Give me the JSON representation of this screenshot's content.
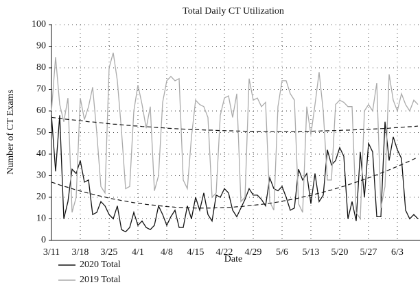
{
  "chart_data": {
    "type": "line",
    "title": "Total Daily CT Utilization",
    "x_label": "Date",
    "y_label": "Number of CT Exams",
    "categories": [
      "3/11",
      null,
      null,
      null,
      null,
      null,
      null,
      "3/18",
      null,
      null,
      null,
      null,
      null,
      null,
      "3/25",
      null,
      null,
      null,
      null,
      null,
      null,
      "4/1",
      null,
      null,
      null,
      null,
      null,
      null,
      "4/8",
      null,
      null,
      null,
      null,
      null,
      null,
      "4/15",
      null,
      null,
      null,
      null,
      null,
      null,
      "4/22",
      null,
      null,
      null,
      null,
      null,
      null,
      "4/29",
      null,
      null,
      null,
      null,
      null,
      null,
      "5/6",
      null,
      null,
      null,
      null,
      null,
      null,
      "5/13",
      null,
      null,
      null,
      null,
      null,
      null,
      "5/20",
      null,
      null,
      null,
      null,
      null,
      null,
      "5/27",
      null,
      null,
      null,
      null,
      null,
      null,
      "6/3",
      null,
      null,
      null,
      null,
      null
    ],
    "series": [
      {
        "name": "2020 Total",
        "color": "#111111",
        "values": [
          58,
          32,
          58,
          10,
          18,
          33,
          31,
          37,
          27,
          28,
          12,
          13,
          18,
          16,
          12,
          10,
          16,
          5,
          4,
          6,
          13,
          7,
          9,
          6,
          5,
          7,
          16,
          12,
          7,
          11,
          14,
          6,
          6,
          16,
          10,
          20,
          14,
          22,
          12,
          9,
          21,
          20,
          24,
          22,
          14,
          11,
          15,
          19,
          24,
          21,
          21,
          19,
          16,
          29,
          24,
          23,
          25,
          20,
          14,
          15,
          33,
          28,
          31,
          17,
          31,
          18,
          21,
          42,
          35,
          37,
          43,
          39,
          10,
          18,
          9,
          41,
          20,
          45,
          41,
          11,
          11,
          55,
          37,
          48,
          42,
          38,
          14,
          10,
          12,
          10
        ]
      },
      {
        "name": "2019 Total",
        "color": "#aaaaaa",
        "values": [
          60,
          85,
          63,
          55,
          66,
          13,
          20,
          66,
          56,
          62,
          71,
          50,
          25,
          22,
          80,
          87,
          74,
          51,
          24,
          25,
          60,
          72,
          63,
          52,
          62,
          23,
          30,
          64,
          74,
          76,
          74,
          75,
          28,
          24,
          48,
          65,
          63,
          62,
          57,
          20,
          22,
          58,
          66,
          67,
          57,
          68,
          18,
          20,
          75,
          65,
          66,
          62,
          64,
          18,
          14,
          62,
          74,
          74,
          68,
          65,
          17,
          13,
          62,
          49,
          63,
          78,
          60,
          28,
          28,
          63,
          65,
          64,
          62,
          62,
          13,
          10,
          60,
          63,
          60,
          73,
          15,
          25,
          77,
          65,
          60,
          68,
          63,
          60,
          65,
          63
        ]
      }
    ],
    "trend_lines": [
      {
        "color": "#111111",
        "values": [
          57.0,
          56.8,
          56.5,
          56.3,
          56.1,
          55.9,
          55.7,
          55.5,
          55.3,
          55.0,
          54.9,
          54.7,
          54.5,
          54.3,
          54.1,
          53.9,
          53.8,
          53.6,
          53.4,
          53.3,
          53.1,
          53.0,
          52.8,
          52.7,
          52.6,
          52.4,
          52.3,
          52.2,
          52.0,
          51.9,
          51.8,
          51.7,
          51.6,
          51.5,
          51.4,
          51.4,
          51.3,
          51.2,
          51.1,
          51.1,
          51.0,
          50.9,
          50.9,
          50.8,
          50.8,
          50.7,
          50.7,
          50.6,
          50.6,
          50.6,
          50.6,
          50.5,
          50.5,
          50.5,
          50.5,
          50.5,
          50.5,
          50.5,
          50.5,
          50.5,
          50.6,
          50.6,
          50.6,
          50.6,
          50.7,
          50.7,
          50.8,
          50.8,
          50.9,
          50.9,
          51.0,
          51.1,
          51.1,
          51.2,
          51.3,
          51.4,
          51.4,
          51.5,
          51.6,
          51.7,
          51.8,
          51.9,
          52.0,
          52.2,
          52.3,
          52.4,
          52.6,
          52.7,
          52.8,
          53.0
        ]
      },
      {
        "color": "#111111",
        "values": [
          27.0,
          26.4,
          25.7,
          25.1,
          24.6,
          24.0,
          23.4,
          22.9,
          22.4,
          21.9,
          21.4,
          20.9,
          20.5,
          20.1,
          19.6,
          19.2,
          18.9,
          18.5,
          18.2,
          17.8,
          17.5,
          17.2,
          17.0,
          16.7,
          16.5,
          16.3,
          16.1,
          15.9,
          15.7,
          15.6,
          15.4,
          15.3,
          15.2,
          15.1,
          15.1,
          15.0,
          15.0,
          15.0,
          15.0,
          15.0,
          15.1,
          15.1,
          15.2,
          15.3,
          15.4,
          15.6,
          15.7,
          15.9,
          16.1,
          16.3,
          16.5,
          16.7,
          17.0,
          17.2,
          17.5,
          17.8,
          18.2,
          18.5,
          18.9,
          19.2,
          19.6,
          20.1,
          20.5,
          20.9,
          21.4,
          21.9,
          22.4,
          22.9,
          23.4,
          24.0,
          24.6,
          25.1,
          25.7,
          26.4,
          27.0,
          27.7,
          28.3,
          29.0,
          29.7,
          30.4,
          31.2,
          31.9,
          32.7,
          33.5,
          34.3,
          35.1,
          36.0,
          36.8,
          37.7,
          38.6
        ]
      }
    ],
    "ylim": [
      0,
      100
    ],
    "yticks": [
      0,
      10,
      20,
      30,
      40,
      50,
      60,
      70,
      80,
      90,
      100
    ],
    "grid": true
  }
}
